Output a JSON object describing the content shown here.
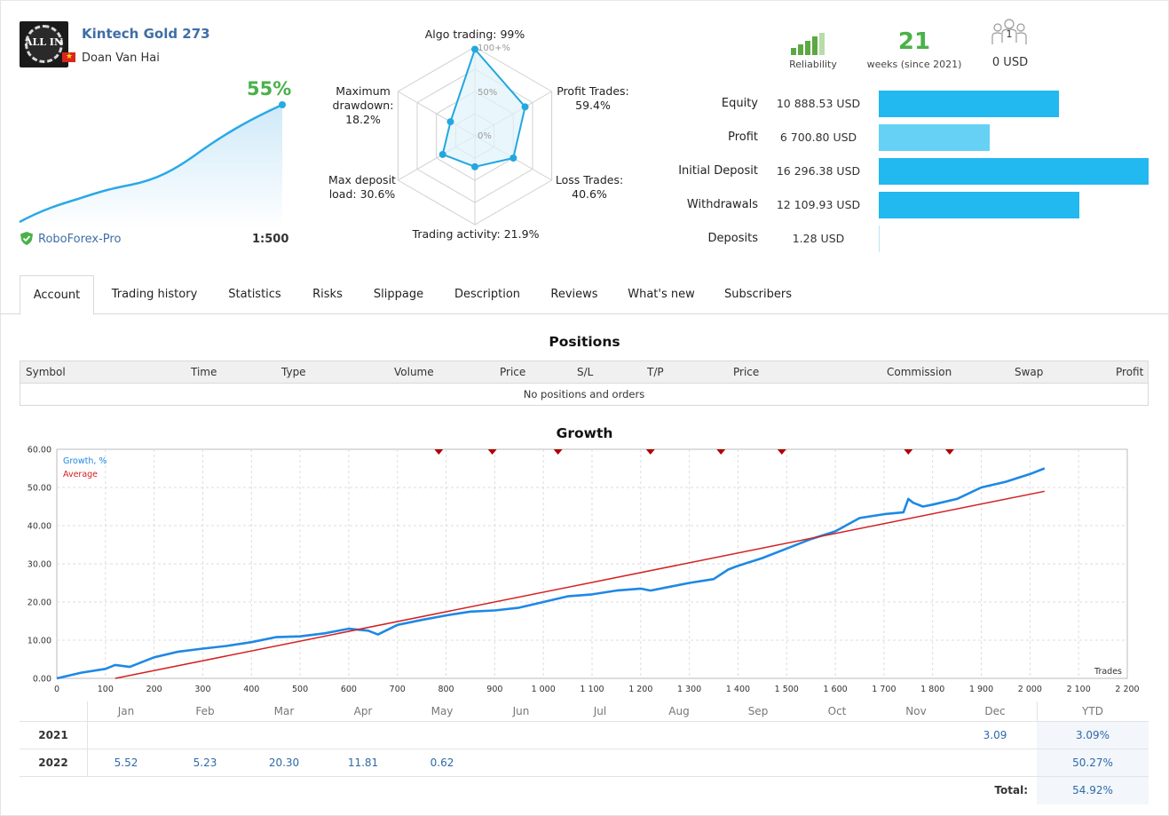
{
  "signal": {
    "name": "Kintech Gold 273",
    "author": "Doan Van Hai",
    "logo_text": "ALL IN",
    "growth_pct": "55%",
    "broker": "RoboForex-Pro",
    "leverage": "1:500"
  },
  "radar": {
    "algo_trading": "Algo trading: 99%",
    "profit_trades": [
      "Profit Trades:",
      "59.4%"
    ],
    "loss_trades": [
      "Loss Trades:",
      "40.6%"
    ],
    "trading_activity": "Trading activity: 21.9%",
    "max_deposit_load": [
      "Max deposit",
      "load: 30.6%"
    ],
    "max_drawdown": [
      "Maximum",
      "drawdown:",
      "18.2%"
    ],
    "scale_labels": [
      "100+%",
      "50%",
      "0%"
    ],
    "values": {
      "algo": 0.99,
      "profit": 0.594,
      "loss": 0.406,
      "activity": 0.219,
      "deposit_load": 0.306,
      "drawdown": 0.182
    }
  },
  "stats": {
    "reliability_label": "Reliability",
    "weeks_num": "21",
    "weeks_label": "weeks (since 2021)",
    "subscribers_count": "1",
    "subscribers_usd": "0 USD"
  },
  "balance": [
    {
      "label": "Equity",
      "value": "10 888.53 USD",
      "fraction": 0.668,
      "color": "#22b8f0"
    },
    {
      "label": "Profit",
      "value": "6 700.80 USD",
      "fraction": 0.411,
      "color": "#66d1f5"
    },
    {
      "label": "Initial Deposit",
      "value": "16 296.38 USD",
      "fraction": 1.0,
      "color": "#22b8f0"
    },
    {
      "label": "Withdrawals",
      "value": "12 109.93 USD",
      "fraction": 0.743,
      "color": "#22b8f0"
    },
    {
      "label": "Deposits",
      "value": "1.28 USD",
      "fraction": 0.0,
      "color": "#22b8f0"
    }
  ],
  "tabs": [
    "Account",
    "Trading history",
    "Statistics",
    "Risks",
    "Slippage",
    "Description",
    "Reviews",
    "What's new",
    "Subscribers"
  ],
  "positions": {
    "title": "Positions",
    "columns": [
      "Symbol",
      "Time",
      "Type",
      "Volume",
      "Price",
      "S/L",
      "T/P",
      "Price",
      "Commission",
      "Swap",
      "Profit"
    ],
    "empty_text": "No positions and orders"
  },
  "chart_data": {
    "type": "line",
    "title": "Growth",
    "xlabel": "Trades",
    "ylabel": "",
    "xlim": [
      0,
      2200
    ],
    "ylim": [
      0,
      60
    ],
    "x_ticks": [
      "0",
      "100",
      "200",
      "300",
      "400",
      "500",
      "600",
      "700",
      "800",
      "900",
      "1 000",
      "1 100",
      "1 200",
      "1 300",
      "1 400",
      "1 500",
      "1 600",
      "1 700",
      "1 800",
      "1 900",
      "2 000",
      "2 100",
      "2 200"
    ],
    "y_ticks": [
      "0.00",
      "10.00",
      "20.00",
      "30.00",
      "40.00",
      "50.00",
      "60.00"
    ],
    "grid": true,
    "legend": "top-left",
    "series": [
      {
        "name": "Growth, %",
        "color": "#1e88e5",
        "x": [
          0,
          50,
          100,
          120,
          150,
          200,
          250,
          300,
          350,
          400,
          450,
          500,
          550,
          600,
          640,
          660,
          700,
          750,
          800,
          850,
          900,
          950,
          1000,
          1050,
          1100,
          1150,
          1200,
          1220,
          1260,
          1300,
          1350,
          1380,
          1400,
          1450,
          1500,
          1550,
          1600,
          1650,
          1700,
          1740,
          1750,
          1760,
          1780,
          1800,
          1850,
          1900,
          1950,
          2000,
          2030
        ],
        "y": [
          0.0,
          1.5,
          2.5,
          3.5,
          3.0,
          5.5,
          7.0,
          7.8,
          8.5,
          9.5,
          10.8,
          11.0,
          11.8,
          13.0,
          12.5,
          11.5,
          14.0,
          15.3,
          16.5,
          17.5,
          17.8,
          18.5,
          20.0,
          21.5,
          22.0,
          23.0,
          23.5,
          23.0,
          24.0,
          25.0,
          26.0,
          28.5,
          29.5,
          31.5,
          34.0,
          36.5,
          38.5,
          42.0,
          43.0,
          43.5,
          47.0,
          46.0,
          45.0,
          45.5,
          47.0,
          50.0,
          51.5,
          53.5,
          55.0
        ]
      },
      {
        "name": "Average",
        "color": "#d32020",
        "x": [
          120,
          2030
        ],
        "y": [
          0.0,
          49.0
        ]
      }
    ],
    "markers_x": [
      785,
      895,
      1030,
      1220,
      1365,
      1490,
      1750,
      1835
    ]
  },
  "yearly": {
    "months": [
      "Jan",
      "Feb",
      "Mar",
      "Apr",
      "May",
      "Jun",
      "Jul",
      "Aug",
      "Sep",
      "Oct",
      "Nov",
      "Dec"
    ],
    "ytd_header": "YTD",
    "rows": [
      {
        "year": "2021",
        "values": [
          "",
          "",
          "",
          "",
          "",
          "",
          "",
          "",
          "",
          "",
          "",
          "3.09"
        ],
        "ytd": "3.09%"
      },
      {
        "year": "2022",
        "values": [
          "5.52",
          "5.23",
          "20.30",
          "11.81",
          "0.62",
          "",
          "",
          "",
          "",
          "",
          "",
          ""
        ],
        "ytd": "50.27%"
      }
    ],
    "total_label": "Total:",
    "total_value": "54.92%"
  }
}
